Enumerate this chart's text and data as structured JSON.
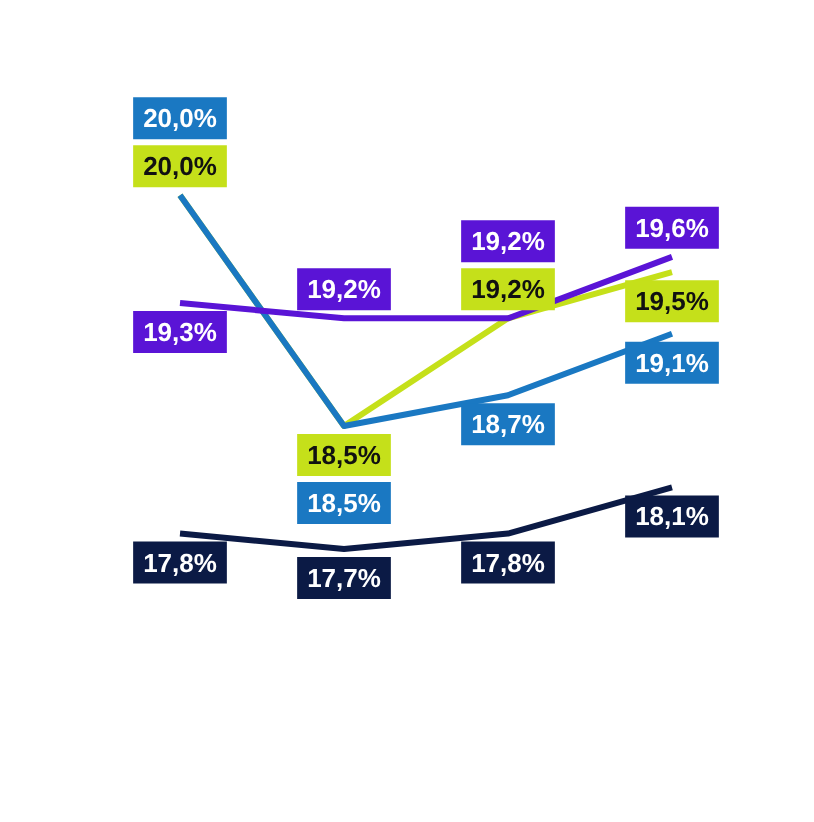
{
  "chart_data": {
    "type": "line",
    "categories": [
      null,
      null,
      null,
      null
    ],
    "marker": "none",
    "line_style": "solid",
    "series": [
      {
        "color": "#c5e01a",
        "values": [
          20.0,
          18.5,
          19.2,
          19.5
        ],
        "value_labels": [
          "20,0%",
          "18,5%",
          "19,2%",
          "19,5%"
        ]
      },
      {
        "color": "#1a78c2",
        "values": [
          20.0,
          18.5,
          18.7,
          19.1
        ],
        "value_labels": [
          "20,0%",
          "18,5%",
          "18,7%",
          "19,1%"
        ]
      },
      {
        "color": "#5a14d6",
        "values": [
          19.3,
          19.2,
          19.2,
          19.6
        ],
        "value_labels": [
          "19,3%",
          "19,2%",
          "19,2%",
          "19,6%"
        ]
      },
      {
        "color": "#0b1a45",
        "values": [
          17.8,
          17.7,
          17.8,
          18.1
        ],
        "value_labels": [
          "17,8%",
          "17,7%",
          "17,8%",
          "18,1%"
        ]
      }
    ]
  }
}
